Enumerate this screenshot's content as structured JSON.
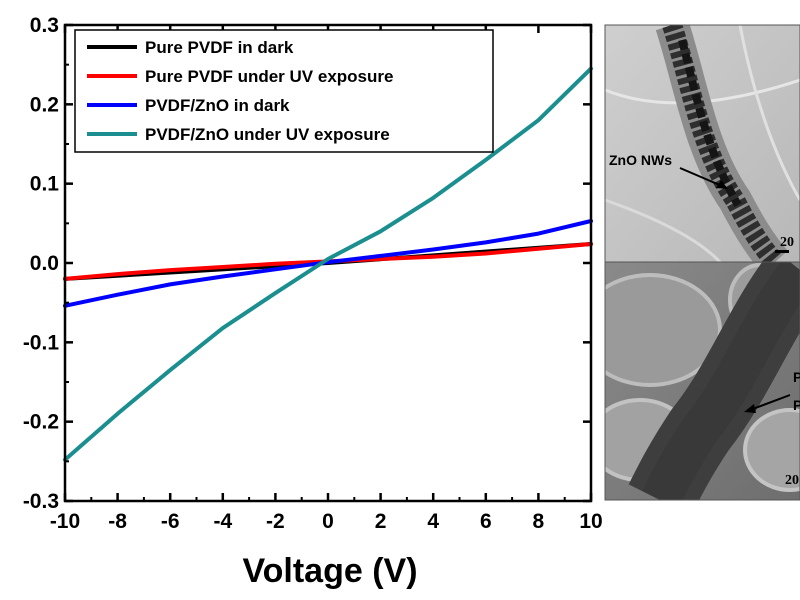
{
  "chart_data": {
    "type": "line",
    "title": "",
    "xlabel": "Voltage (V)",
    "ylabel": "",
    "xlim": [
      -10,
      10
    ],
    "ylim": [
      -0.3,
      0.3
    ],
    "x_ticks": [
      "-10",
      "-8",
      "-6",
      "-4",
      "-2",
      "0",
      "2",
      "4",
      "6",
      "8",
      "10"
    ],
    "y_ticks": [
      "-0.3",
      "-0.2",
      "-0.1",
      "0.0",
      "0.1",
      "0.2",
      "0.3"
    ],
    "legend_position": "top-left",
    "grid": false,
    "series": [
      {
        "name": "Pure PVDF in dark",
        "color": "#000000",
        "x": [
          -10,
          0,
          10
        ],
        "y": [
          -0.02,
          0.0,
          0.024
        ]
      },
      {
        "name": "Pure PVDF under UV exposure",
        "color": "#ff0000",
        "x": [
          -10,
          -8,
          -6,
          -4,
          -2,
          0,
          2,
          4,
          6,
          8,
          10
        ],
        "y": [
          -0.02,
          -0.014,
          -0.009,
          -0.005,
          -0.001,
          0.002,
          0.005,
          0.008,
          0.012,
          0.018,
          0.024
        ]
      },
      {
        "name": "PVDF/ZnO in dark",
        "color": "#0000ff",
        "x": [
          -10,
          -8,
          -6,
          -4,
          -2,
          0,
          2,
          4,
          6,
          8,
          10
        ],
        "y": [
          -0.054,
          -0.04,
          -0.027,
          -0.017,
          -0.008,
          0.001,
          0.009,
          0.017,
          0.026,
          0.037,
          0.053
        ]
      },
      {
        "name": "PVDF/ZnO under UV exposure",
        "color": "#1b8f8f",
        "x": [
          -10,
          -8,
          -6,
          -4,
          -2,
          0,
          2,
          4,
          6,
          8,
          10
        ],
        "y": [
          -0.248,
          -0.19,
          -0.135,
          -0.082,
          -0.038,
          0.005,
          0.04,
          0.082,
          0.13,
          0.18,
          0.245
        ]
      }
    ]
  },
  "inset": {
    "top_label": "ZnO NWs",
    "top_scale": "20",
    "bottom_label_1": "P",
    "bottom_label_2": "P",
    "bottom_scale": "20"
  }
}
